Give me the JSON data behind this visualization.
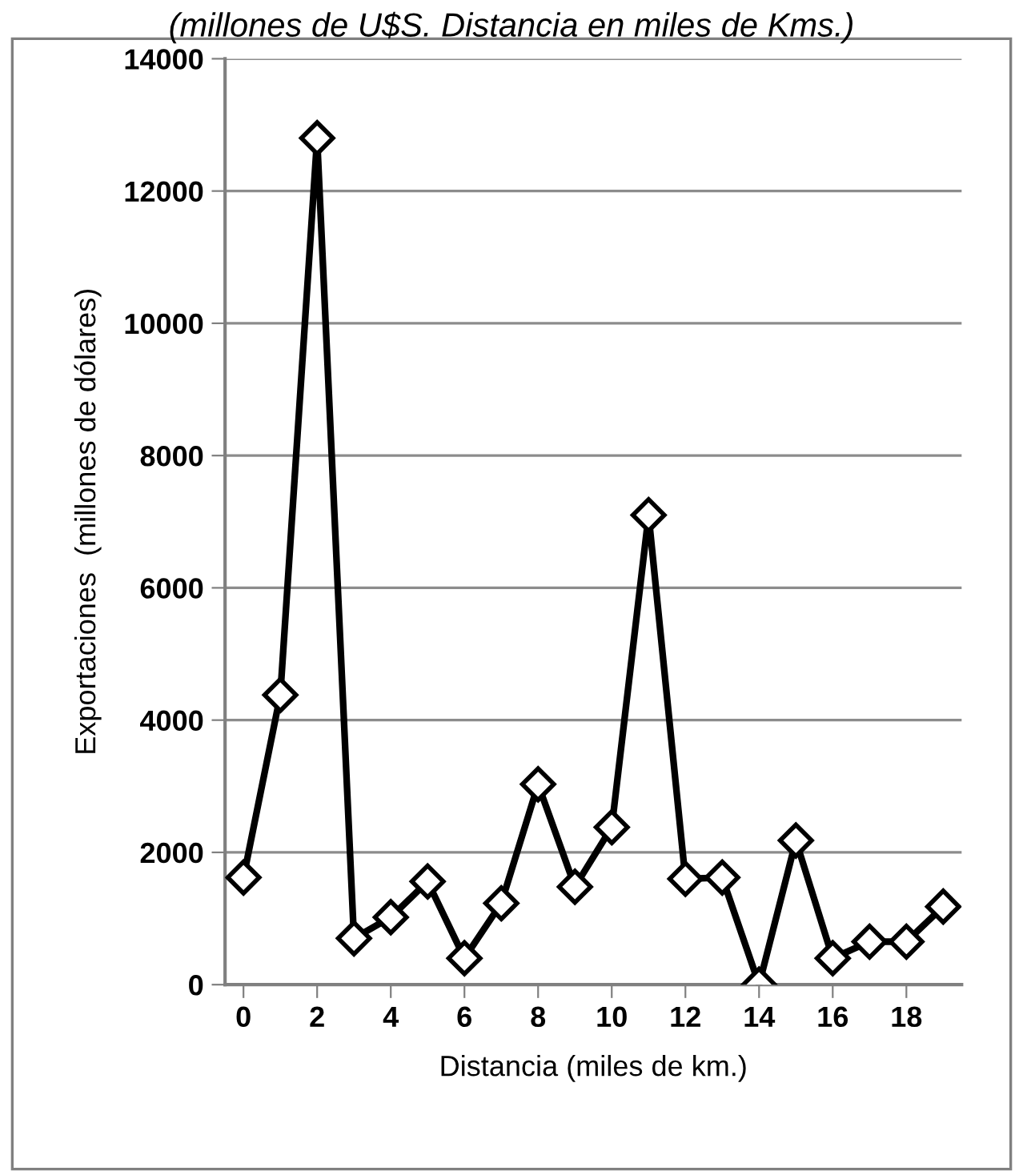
{
  "chart_data": {
    "type": "line",
    "title": "(millones de U$S. Distancia en miles de Kms.)",
    "xlabel": "Distancia (miles de km.)",
    "ylabel": "Exportaciones  (millones de dólares)",
    "x": [
      0,
      1,
      2,
      3,
      4,
      5,
      6,
      7,
      8,
      9,
      10,
      11,
      12,
      13,
      14,
      15,
      16,
      17,
      18,
      19
    ],
    "series": [
      {
        "color": "#000000",
        "values": [
          1620,
          4380,
          12800,
          700,
          1020,
          1560,
          400,
          1230,
          3030,
          1480,
          2380,
          7100,
          1600,
          1620,
          0,
          2180,
          400,
          650,
          650,
          1180
        ]
      }
    ],
    "xlim": [
      -0.5,
      19.5
    ],
    "xticks": [
      0,
      2,
      4,
      6,
      8,
      10,
      12,
      14,
      16,
      18
    ],
    "ylim": [
      0,
      14000
    ],
    "yticks": [
      0,
      2000,
      4000,
      6000,
      8000,
      10000,
      12000,
      14000
    ],
    "grid": "y",
    "marker": "diamond",
    "line_style": "solid",
    "legend": false
  }
}
